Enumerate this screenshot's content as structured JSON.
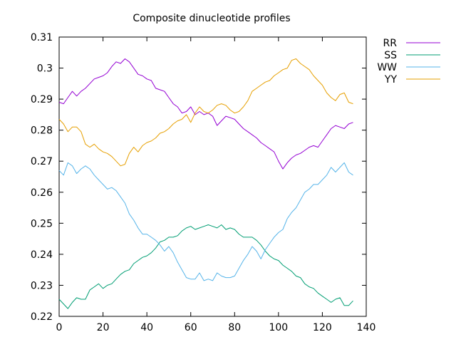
{
  "chart_data": {
    "type": "line",
    "title": "Composite dinucleotide profiles",
    "xlabel": "",
    "ylabel": "",
    "xlim": [
      0,
      140
    ],
    "ylim": [
      0.22,
      0.31
    ],
    "xticks": [
      "0",
      "20",
      "40",
      "60",
      "80",
      "100",
      "120",
      "140"
    ],
    "yticks": [
      "0.22",
      "0.23",
      "0.24",
      "0.25",
      "0.26",
      "0.27",
      "0.28",
      "0.29",
      "0.3",
      "0.31"
    ],
    "legend_position": "top-right, outside plot",
    "grid": false,
    "series": [
      {
        "name": "RR",
        "color": "#9400d3",
        "x": [
          0,
          2,
          4,
          6,
          8,
          10,
          12,
          14,
          16,
          18,
          20,
          22,
          24,
          26,
          28,
          30,
          32,
          34,
          36,
          38,
          40,
          42,
          44,
          46,
          48,
          50,
          52,
          54,
          56,
          58,
          60,
          62,
          64,
          66,
          68,
          70,
          72,
          74,
          76,
          78,
          80,
          82,
          84,
          86,
          88,
          90,
          92,
          94,
          96,
          98,
          100,
          102,
          104,
          106,
          108,
          110,
          112,
          114,
          116,
          118,
          120,
          122,
          124,
          126,
          128,
          130,
          132,
          134
        ],
        "values": [
          0.289,
          0.2885,
          0.2905,
          0.2925,
          0.291,
          0.2925,
          0.2935,
          0.295,
          0.2965,
          0.297,
          0.2975,
          0.2985,
          0.3005,
          0.302,
          0.3015,
          0.303,
          0.302,
          0.3,
          0.298,
          0.2975,
          0.2965,
          0.296,
          0.2935,
          0.293,
          0.2925,
          0.2905,
          0.2885,
          0.2875,
          0.2855,
          0.286,
          0.2875,
          0.285,
          0.286,
          0.285,
          0.2855,
          0.2845,
          0.2815,
          0.283,
          0.2845,
          0.284,
          0.2835,
          0.282,
          0.2805,
          0.2795,
          0.2785,
          0.2775,
          0.276,
          0.275,
          0.274,
          0.273,
          0.27,
          0.2675,
          0.2695,
          0.271,
          0.272,
          0.2725,
          0.2735,
          0.2745,
          0.275,
          0.2745,
          0.2765,
          0.2785,
          0.2805,
          0.2815,
          0.281,
          0.2805,
          0.282,
          0.2825
        ]
      },
      {
        "name": "SS",
        "color": "#009e73",
        "x": [
          0,
          2,
          4,
          6,
          8,
          10,
          12,
          14,
          16,
          18,
          20,
          22,
          24,
          26,
          28,
          30,
          32,
          34,
          36,
          38,
          40,
          42,
          44,
          46,
          48,
          50,
          52,
          54,
          56,
          58,
          60,
          62,
          64,
          66,
          68,
          70,
          72,
          74,
          76,
          78,
          80,
          82,
          84,
          86,
          88,
          90,
          92,
          94,
          96,
          98,
          100,
          102,
          104,
          106,
          108,
          110,
          112,
          114,
          116,
          118,
          120,
          122,
          124,
          126,
          128,
          130,
          132,
          134
        ],
        "values": [
          0.2255,
          0.224,
          0.2225,
          0.2245,
          0.226,
          0.2255,
          0.2255,
          0.2285,
          0.2295,
          0.2305,
          0.229,
          0.23,
          0.2305,
          0.232,
          0.2335,
          0.2345,
          0.235,
          0.237,
          0.238,
          0.239,
          0.2395,
          0.2405,
          0.242,
          0.244,
          0.2445,
          0.2455,
          0.2455,
          0.246,
          0.2475,
          0.2485,
          0.249,
          0.248,
          0.2485,
          0.249,
          0.2495,
          0.249,
          0.2485,
          0.2495,
          0.248,
          0.2485,
          0.248,
          0.2465,
          0.2455,
          0.2455,
          0.2455,
          0.2445,
          0.243,
          0.241,
          0.2395,
          0.2385,
          0.238,
          0.2365,
          0.2355,
          0.2345,
          0.233,
          0.2325,
          0.2305,
          0.2295,
          0.229,
          0.2275,
          0.2265,
          0.2255,
          0.2245,
          0.2255,
          0.226,
          0.2235,
          0.2235,
          0.225
        ]
      },
      {
        "name": "WW",
        "color": "#56b4e9",
        "x": [
          0,
          2,
          4,
          6,
          8,
          10,
          12,
          14,
          16,
          18,
          20,
          22,
          24,
          26,
          28,
          30,
          32,
          34,
          36,
          38,
          40,
          42,
          44,
          46,
          48,
          50,
          52,
          54,
          56,
          58,
          60,
          62,
          64,
          66,
          68,
          70,
          72,
          74,
          76,
          78,
          80,
          82,
          84,
          86,
          88,
          90,
          92,
          94,
          96,
          98,
          100,
          102,
          104,
          106,
          108,
          110,
          112,
          114,
          116,
          118,
          120,
          122,
          124,
          126,
          128,
          130,
          132,
          134
        ],
        "values": [
          0.267,
          0.2655,
          0.2695,
          0.2685,
          0.266,
          0.2675,
          0.2685,
          0.2675,
          0.2655,
          0.264,
          0.2625,
          0.261,
          0.2615,
          0.2605,
          0.2585,
          0.2565,
          0.253,
          0.251,
          0.2485,
          0.2465,
          0.2465,
          0.2455,
          0.2445,
          0.243,
          0.241,
          0.2425,
          0.2405,
          0.2375,
          0.235,
          0.2325,
          0.232,
          0.232,
          0.234,
          0.2315,
          0.232,
          0.2315,
          0.234,
          0.233,
          0.2325,
          0.2325,
          0.233,
          0.2355,
          0.238,
          0.24,
          0.2425,
          0.241,
          0.2385,
          0.2415,
          0.2435,
          0.2455,
          0.247,
          0.248,
          0.2515,
          0.2535,
          0.255,
          0.2575,
          0.26,
          0.261,
          0.2625,
          0.2625,
          0.264,
          0.2655,
          0.268,
          0.2665,
          0.268,
          0.2695,
          0.2665,
          0.2655
        ]
      },
      {
        "name": "YY",
        "color": "#e69f00",
        "x": [
          0,
          2,
          4,
          6,
          8,
          10,
          12,
          14,
          16,
          18,
          20,
          22,
          24,
          26,
          28,
          30,
          32,
          34,
          36,
          38,
          40,
          42,
          44,
          46,
          48,
          50,
          52,
          54,
          56,
          58,
          60,
          62,
          64,
          66,
          68,
          70,
          72,
          74,
          76,
          78,
          80,
          82,
          84,
          86,
          88,
          90,
          92,
          94,
          96,
          98,
          100,
          102,
          104,
          106,
          108,
          110,
          112,
          114,
          116,
          118,
          120,
          122,
          124,
          126,
          128,
          130,
          132,
          134
        ],
        "values": [
          0.2835,
          0.282,
          0.2795,
          0.281,
          0.281,
          0.2795,
          0.2755,
          0.2745,
          0.2755,
          0.274,
          0.273,
          0.2725,
          0.2715,
          0.27,
          0.2685,
          0.269,
          0.2725,
          0.2745,
          0.273,
          0.275,
          0.276,
          0.2765,
          0.2775,
          0.279,
          0.2795,
          0.2805,
          0.282,
          0.283,
          0.2835,
          0.285,
          0.2825,
          0.2855,
          0.2875,
          0.286,
          0.2855,
          0.2865,
          0.288,
          0.2885,
          0.288,
          0.2865,
          0.2855,
          0.286,
          0.2875,
          0.2895,
          0.2925,
          0.2935,
          0.2945,
          0.2955,
          0.296,
          0.2975,
          0.2985,
          0.2995,
          0.3,
          0.3025,
          0.303,
          0.3015,
          0.3005,
          0.2995,
          0.2975,
          0.296,
          0.2945,
          0.292,
          0.2905,
          0.2895,
          0.2915,
          0.292,
          0.289,
          0.2885
        ]
      }
    ]
  }
}
